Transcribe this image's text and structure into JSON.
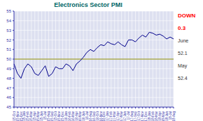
{
  "chart_data": {
    "type": "line",
    "title": "Electronics Sector PMI",
    "categories": [
      "15-Oct",
      "15-Nov",
      "15-Dec",
      "15-Jan",
      "15-Feb",
      "15-Mar",
      "15-Apr",
      "15-May",
      "15-Jun",
      "15-Jul",
      "15-Aug",
      "15-Sep",
      "15-Oct",
      "15-Nov",
      "15-Dec",
      "16-Jan",
      "16-Feb",
      "16-Mar",
      "16-Apr",
      "16-May",
      "16-Jun",
      "16-Jul",
      "16-Aug",
      "16-Sep",
      "16-Oct",
      "16-Nov",
      "16-Dec",
      "17-Jan",
      "17-Feb",
      "17-Mar",
      "17-Apr",
      "17-May",
      "17-Jun",
      "17-Jul",
      "17-Aug",
      "17-Sep",
      "17-Oct",
      "17-Nov",
      "17-Dec",
      "18-Jan",
      "18-Feb",
      "18-Mar",
      "18-Apr",
      "18-May",
      "18-Jun",
      "18-Jul",
      "18-Aug"
    ],
    "values": [
      49.5,
      48.5,
      48.0,
      49.0,
      49.5,
      49.2,
      48.5,
      48.3,
      48.8,
      49.3,
      48.2,
      48.5,
      49.2,
      49.0,
      49.0,
      49.5,
      49.3,
      48.8,
      49.5,
      49.8,
      50.2,
      50.7,
      51.0,
      50.8,
      51.2,
      51.5,
      51.4,
      51.8,
      51.6,
      51.5,
      51.8,
      51.5,
      51.3,
      52.0,
      52.0,
      51.8,
      52.2,
      52.5,
      52.3,
      52.8,
      52.7,
      52.5,
      52.6,
      52.4,
      52.1,
      52.3,
      52.1
    ],
    "color": "#00008B",
    "ylim": [
      45,
      55
    ],
    "yticks": [
      45,
      46,
      47,
      48,
      49,
      50,
      51,
      52,
      53,
      54,
      55
    ],
    "grid": true,
    "reference_line": 50,
    "annotations": [
      {
        "text": "DOWN",
        "color": "#ff0000"
      },
      {
        "text": "0.3",
        "color": "#ff0000"
      },
      {
        "text": "June"
      },
      {
        "text": "52.1"
      },
      {
        "text": "May"
      },
      {
        "text": "52.4"
      }
    ]
  }
}
